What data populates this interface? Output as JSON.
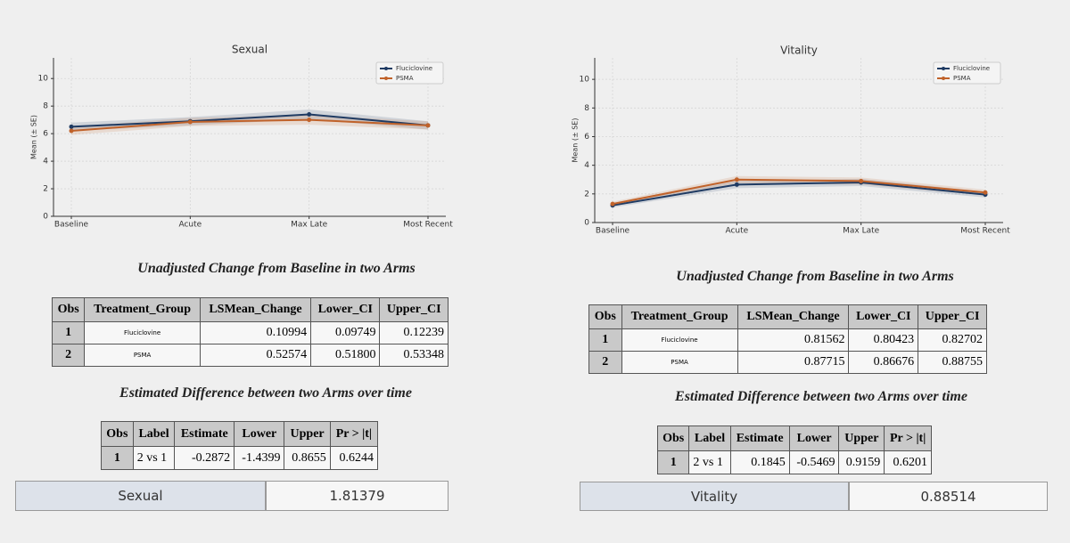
{
  "chart_data": [
    {
      "type": "line",
      "title": "Sexual",
      "y_label": "Mean (± SE)",
      "categories": [
        "Baseline",
        "Acute",
        "Max Late",
        "Most Recent"
      ],
      "series": [
        {
          "name": "Fluciclovine",
          "color": "#1f3b63",
          "values": [
            6.5,
            6.9,
            7.4,
            6.6
          ],
          "se": [
            0.3,
            0.3,
            0.35,
            0.3
          ]
        },
        {
          "name": "PSMA",
          "color": "#c0622a",
          "values": [
            6.2,
            6.85,
            7.0,
            6.6
          ],
          "se": [
            0.3,
            0.3,
            0.35,
            0.3
          ]
        }
      ],
      "ylim": [
        0,
        11.5
      ],
      "yticks": [
        0,
        2,
        4,
        6,
        8,
        10
      ],
      "grid": true,
      "legend": "upper right"
    },
    {
      "type": "line",
      "title": "Vitality",
      "y_label": "Mean (± SE)",
      "categories": [
        "Baseline",
        "Acute",
        "Max Late",
        "Most Recent"
      ],
      "series": [
        {
          "name": "Fluciclovine",
          "color": "#1f3b63",
          "values": [
            1.2,
            2.65,
            2.8,
            1.95
          ],
          "se": [
            0.15,
            0.25,
            0.25,
            0.2
          ]
        },
        {
          "name": "PSMA",
          "color": "#c0622a",
          "values": [
            1.3,
            3.0,
            2.9,
            2.1
          ],
          "se": [
            0.15,
            0.25,
            0.25,
            0.2
          ]
        }
      ],
      "ylim": [
        0,
        11.5
      ],
      "yticks": [
        0,
        2,
        4,
        6,
        8,
        10
      ],
      "grid": true,
      "legend": "upper right"
    }
  ],
  "panels": [
    {
      "table1": {
        "title": "Unadjusted Change from Baseline in two Arms",
        "columns": [
          "Obs",
          "Treatment_Group",
          "LSMean_Change",
          "Lower_CI",
          "Upper_CI"
        ],
        "rows": [
          [
            "1",
            "Fluciclovine",
            "0.10994",
            "0.09749",
            "0.12239"
          ],
          [
            "2",
            "PSMA",
            "0.52574",
            "0.51800",
            "0.53348"
          ]
        ]
      },
      "table2": {
        "title": "Estimated Difference between two Arms over time",
        "columns": [
          "Obs",
          "Label",
          "Estimate",
          "Lower",
          "Upper",
          "Pr > |t|"
        ],
        "rows": [
          [
            "1",
            "2 vs 1",
            "-0.2872",
            "-1.4399",
            "0.8655",
            "0.6244"
          ]
        ]
      },
      "summary": {
        "label": "Sexual",
        "value": "1.81379"
      }
    },
    {
      "table1": {
        "title": "Unadjusted Change from Baseline in two Arms",
        "columns": [
          "Obs",
          "Treatment_Group",
          "LSMean_Change",
          "Lower_CI",
          "Upper_CI"
        ],
        "rows": [
          [
            "1",
            "Fluciclovine",
            "0.81562",
            "0.80423",
            "0.82702"
          ],
          [
            "2",
            "PSMA",
            "0.87715",
            "0.86676",
            "0.88755"
          ]
        ]
      },
      "table2": {
        "title": "Estimated Difference between two Arms over time",
        "columns": [
          "Obs",
          "Label",
          "Estimate",
          "Lower",
          "Upper",
          "Pr > |t|"
        ],
        "rows": [
          [
            "1",
            "2 vs 1",
            "0.1845",
            "-0.5469",
            "0.9159",
            "0.6201"
          ]
        ]
      },
      "summary": {
        "label": "Vitality",
        "value": "0.88514"
      }
    }
  ]
}
